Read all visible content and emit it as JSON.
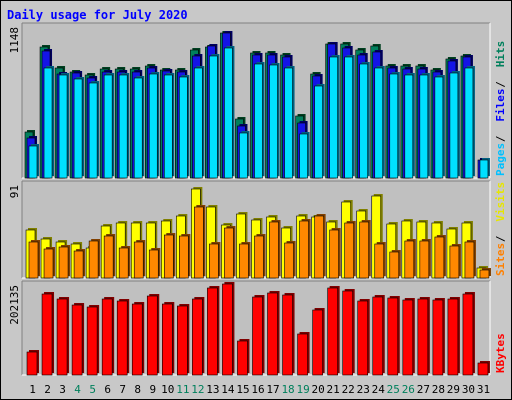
{
  "chart_data": {
    "type": "bar",
    "title": "Daily usage for July 2020",
    "categories": [
      "1",
      "2",
      "3",
      "4",
      "5",
      "6",
      "7",
      "8",
      "9",
      "10",
      "11",
      "12",
      "13",
      "14",
      "15",
      "16",
      "17",
      "18",
      "19",
      "20",
      "21",
      "22",
      "23",
      "24",
      "25",
      "26",
      "27",
      "28",
      "29",
      "30",
      "31"
    ],
    "weekend_days": [
      "4",
      "5",
      "11",
      "12",
      "18",
      "19",
      "25",
      "26"
    ],
    "panels": [
      {
        "name": "hits-files-pages",
        "y_max_label": "1148",
        "ylim": [
          0,
          1148
        ],
        "legend": [
          {
            "text": "Hits",
            "color": "#00805c"
          },
          {
            "text": "Files",
            "color": "#0000ff"
          },
          {
            "text": "Pages",
            "color": "#00c0ff"
          }
        ],
        "series": [
          {
            "name": "Hits",
            "color": "#00805c",
            "values": [
              356,
              1010,
              850,
              820,
              790,
              840,
              840,
              840,
              860,
              835,
              835,
              990,
              1010,
              1115,
              455,
              965,
              965,
              950,
              475,
              800,
              1030,
              1030,
              990,
              1020,
              860,
              860,
              860,
              830,
              920,
              940,
              0
            ]
          },
          {
            "name": "Files",
            "color": "#1414e6",
            "values": [
              305,
              975,
              800,
              810,
              770,
              820,
              820,
              815,
              850,
              825,
              820,
              940,
              1015,
              1115,
              400,
              945,
              945,
              930,
              420,
              785,
              1030,
              1000,
              950,
              970,
              850,
              840,
              840,
              820,
              900,
              930,
              140
            ]
          },
          {
            "name": "Pages",
            "color": "#00e0ff",
            "values": [
              250,
              850,
              790,
              760,
              730,
              790,
              790,
              770,
              800,
              795,
              780,
              850,
              940,
              1000,
              345,
              875,
              870,
              850,
              340,
              710,
              930,
              930,
              880,
              850,
              800,
              790,
              790,
              780,
              810,
              850,
              140
            ]
          }
        ]
      },
      {
        "name": "visits-sites",
        "y_max_label": "91",
        "ylim": [
          0,
          91
        ],
        "legend": [
          {
            "text": "Visits",
            "color": "#e6e600"
          },
          {
            "text": "Sites",
            "color": "#ff8000"
          }
        ],
        "series": [
          {
            "name": "Visits",
            "color": "#ffff00",
            "values": [
              48,
              39,
              36,
              34,
              30,
              52,
              55,
              55,
              55,
              57,
              62,
              89,
              71,
              53,
              64,
              58,
              61,
              50,
              62,
              61,
              56,
              76,
              67,
              82,
              54,
              57,
              56,
              55,
              49,
              55,
              10
            ]
          },
          {
            "name": "Sites",
            "color": "#ff8800",
            "values": [
              36,
              29,
              31,
              27,
              37,
              42,
              30,
              36,
              28,
              43,
              42,
              71,
              34,
              50,
              34,
              42,
              56,
              35,
              57,
              62,
              48,
              55,
              56,
              34,
              26,
              37,
              37,
              41,
              32,
              36,
              8
            ]
          }
        ]
      },
      {
        "name": "kbytes",
        "y_max_label": "202135",
        "ylim": [
          0,
          202135
        ],
        "legend": [
          {
            "text": "KBytes",
            "color": "#ff0000"
          }
        ],
        "series": [
          {
            "name": "KBytes",
            "color": "#ff0000",
            "values": [
              52000,
              186000,
              175000,
              160000,
              156000,
              175000,
              170000,
              164000,
              181000,
              162000,
              158000,
              175000,
              200000,
              210000,
              79000,
              180000,
              188000,
              183000,
              95000,
              150000,
              200000,
              192000,
              171000,
              180000,
              177000,
              172000,
              174000,
              173000,
              174000,
              185000,
              27000
            ]
          }
        ]
      }
    ]
  }
}
